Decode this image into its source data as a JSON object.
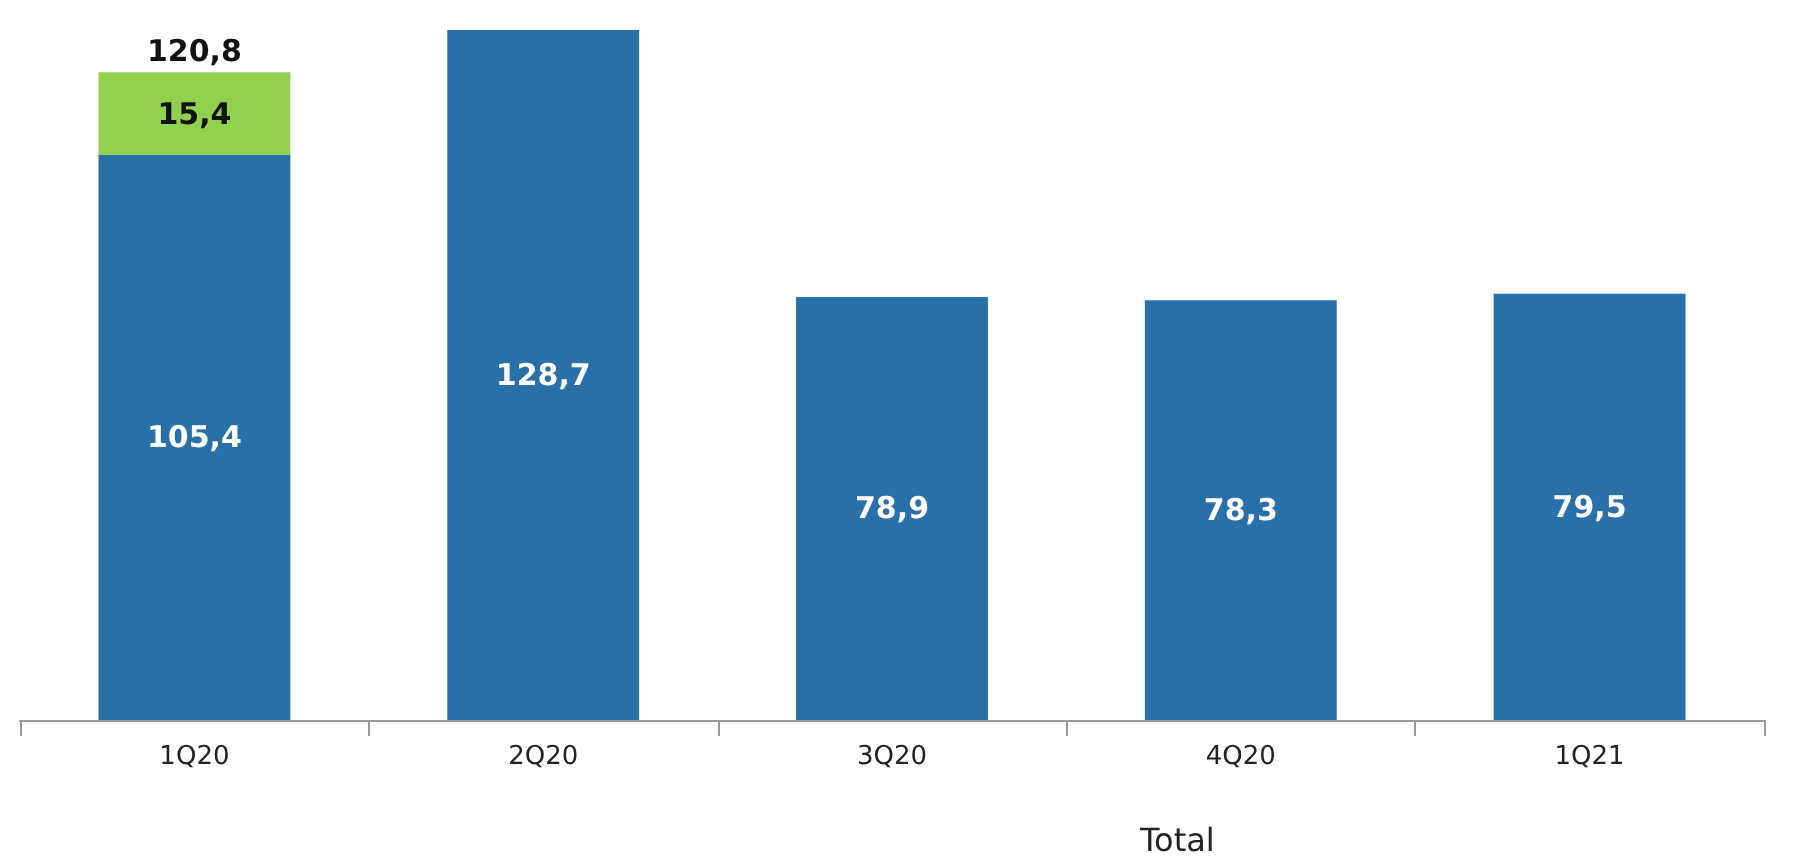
{
  "chart_data": {
    "type": "bar",
    "stacked": true,
    "categories": [
      "1Q20",
      "2Q20",
      "3Q20",
      "4Q20",
      "1Q21"
    ],
    "series": [
      {
        "color": "#2970a8",
        "values": [
          105.4,
          128.7,
          78.9,
          78.3,
          79.5
        ],
        "value_labels": [
          "105,4",
          "128,7",
          "78,9",
          "78,3",
          "79,5"
        ]
      },
      {
        "color": "#92d050",
        "values": [
          15.4,
          null,
          null,
          null,
          null
        ],
        "value_labels": [
          "15,4",
          null,
          null,
          null,
          null
        ]
      }
    ],
    "totals": [
      "120,8",
      null,
      null,
      null,
      null
    ],
    "annotations": [
      "Total"
    ]
  }
}
